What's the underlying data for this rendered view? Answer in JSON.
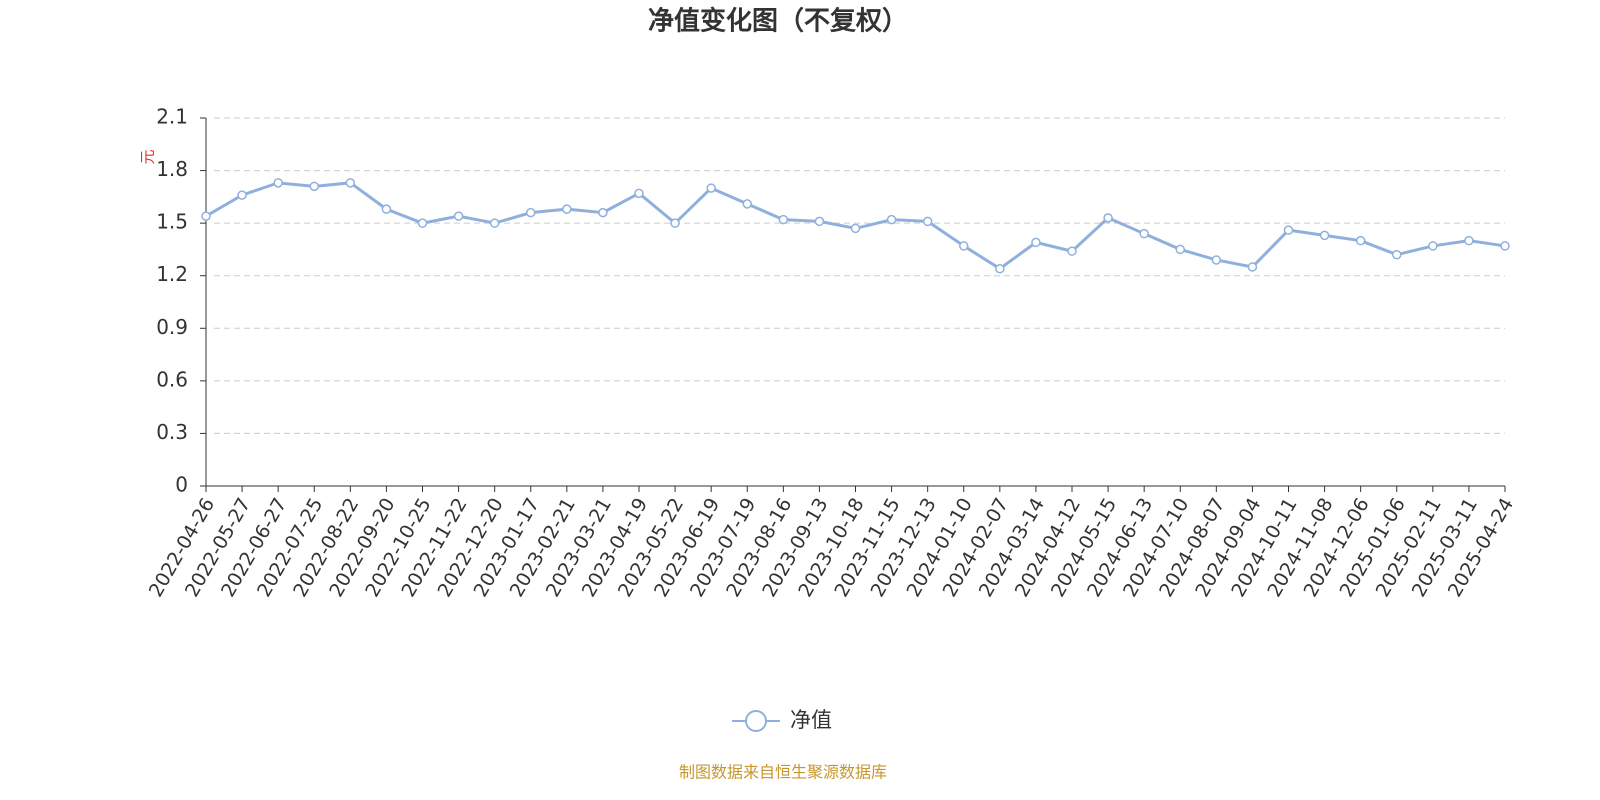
{
  "chart_data": {
    "type": "line",
    "title": "净值变化图（不复权）",
    "y_label": "元",
    "categories": [
      "2022-04-26",
      "2022-05-27",
      "2022-06-27",
      "2022-07-25",
      "2022-08-22",
      "2022-09-20",
      "2022-10-25",
      "2022-11-22",
      "2022-12-20",
      "2023-01-17",
      "2023-02-21",
      "2023-03-21",
      "2023-04-19",
      "2023-05-22",
      "2023-06-19",
      "2023-07-19",
      "2023-08-16",
      "2023-09-13",
      "2023-10-18",
      "2023-11-15",
      "2023-12-13",
      "2024-01-10",
      "2024-02-07",
      "2024-03-14",
      "2024-04-12",
      "2024-05-15",
      "2024-06-13",
      "2024-07-10",
      "2024-08-07",
      "2024-09-04",
      "2024-10-11",
      "2024-11-08",
      "2024-12-06",
      "2025-01-06",
      "2025-02-11",
      "2025-03-11",
      "2025-04-24"
    ],
    "series": [
      {
        "name": "净值",
        "color": "#8fb0dc",
        "values": [
          1.54,
          1.66,
          1.73,
          1.71,
          1.73,
          1.58,
          1.5,
          1.54,
          1.5,
          1.56,
          1.58,
          1.56,
          1.67,
          1.5,
          1.7,
          1.61,
          1.52,
          1.51,
          1.47,
          1.52,
          1.51,
          1.37,
          1.24,
          1.39,
          1.34,
          1.53,
          1.44,
          1.35,
          1.29,
          1.25,
          1.46,
          1.43,
          1.4,
          1.32,
          1.37,
          1.4,
          1.37
        ]
      }
    ],
    "ylim": [
      0,
      2.1
    ],
    "yticks": [
      0,
      0.3,
      0.6,
      0.9,
      1.2,
      1.5,
      1.8,
      2.1
    ],
    "grid": true,
    "legend": "bottom",
    "source": "制图数据来自恒生聚源数据库"
  }
}
